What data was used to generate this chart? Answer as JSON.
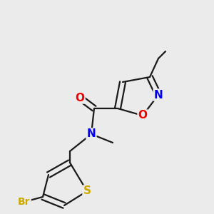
{
  "background_color": "#EBEBEB",
  "atom_colors": {
    "N": "#0000EE",
    "O": "#EE0000",
    "S": "#CCAA00",
    "Br": "#CCAA00",
    "C": "#1a1a1a",
    "default": "#1a1a1a"
  },
  "bond_color": "#1a1a1a",
  "bond_width": 1.6,
  "font_size_atoms": 11,
  "font_size_methyl": 9
}
